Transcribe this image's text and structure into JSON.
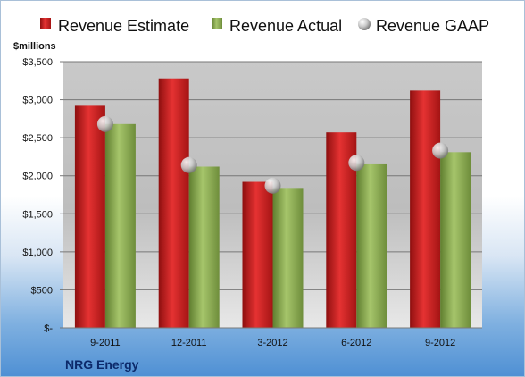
{
  "chart_data": {
    "type": "bar",
    "categories": [
      "9-2011",
      "12-2011",
      "3-2012",
      "6-2012",
      "9-2012"
    ],
    "series": [
      {
        "name": "Revenue Estimate",
        "kind": "bar",
        "color": "#d01f1f",
        "values": [
          2920,
          3280,
          1920,
          2570,
          3120
        ]
      },
      {
        "name": "Revenue Actual",
        "kind": "bar",
        "color": "#8cb050",
        "values": [
          2680,
          2120,
          1840,
          2150,
          2310
        ]
      },
      {
        "name": "Revenue GAAP",
        "kind": "marker",
        "color": "#c8c8c8",
        "values": [
          2680,
          2140,
          1870,
          2170,
          2330
        ]
      }
    ],
    "ylabel": "$millions",
    "ylim": [
      0,
      3500
    ],
    "yticks": [
      0,
      500,
      1000,
      1500,
      2000,
      2500,
      3000,
      3500
    ],
    "ytick_labels": [
      "$-",
      "$500",
      "$1,000",
      "$1,500",
      "$2,000",
      "$2,500",
      "$3,000",
      "$3,500"
    ],
    "grid": true,
    "legend_position": "top"
  },
  "footer": {
    "company": "NRG Energy"
  }
}
